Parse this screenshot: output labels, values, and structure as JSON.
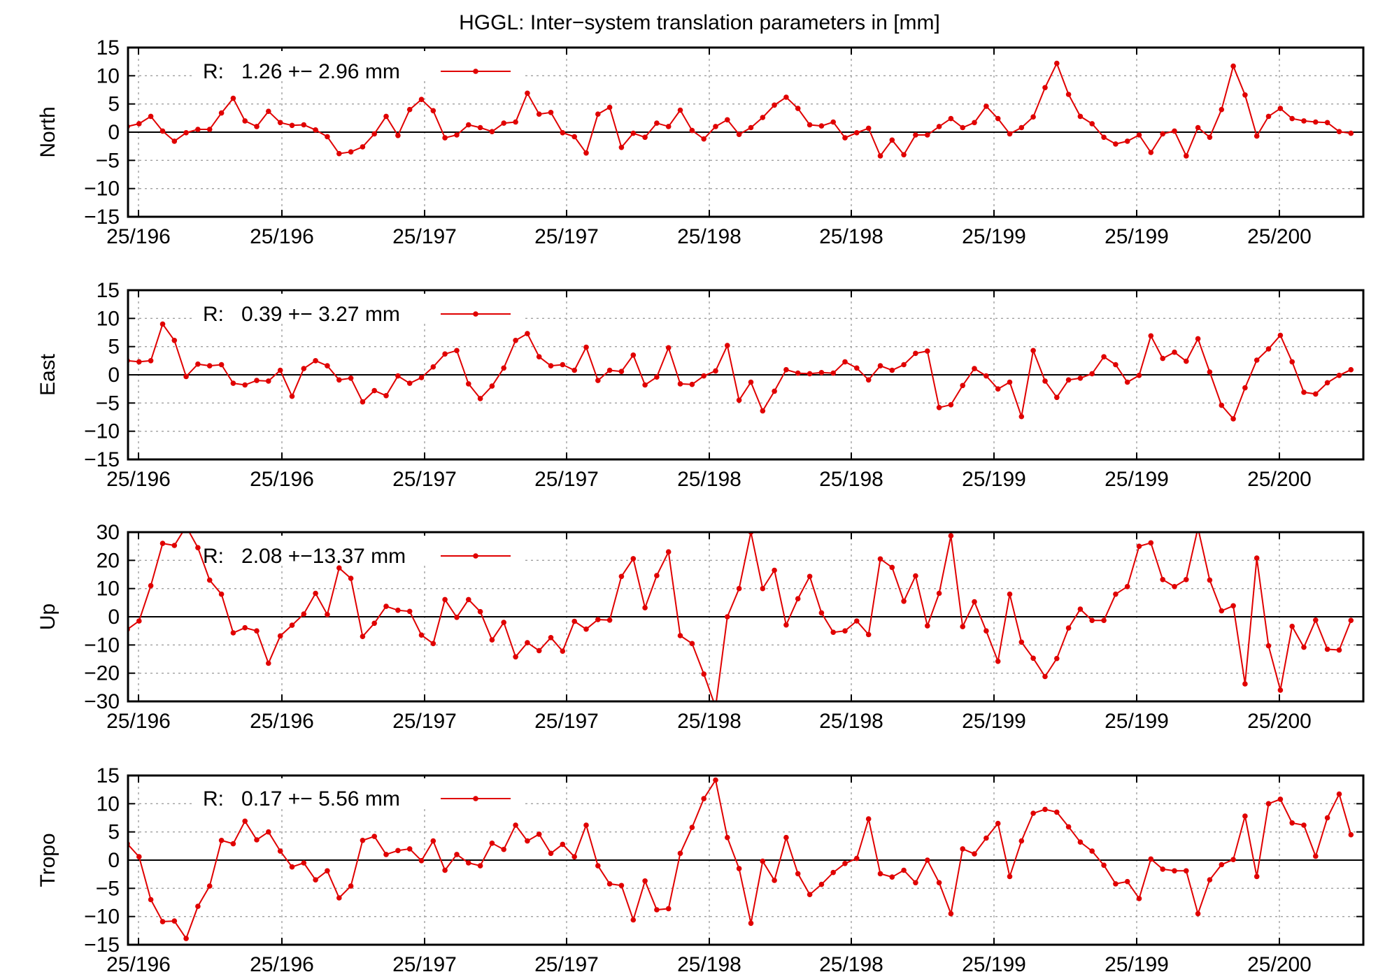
{
  "chart_data": [
    {
      "type": "line",
      "title": "HGGL: Inter−system translation parameters in [mm]",
      "ylabel": "North",
      "ylim": [
        -15,
        15
      ],
      "yticks": [
        15,
        10,
        5,
        0,
        -5,
        -10,
        -15
      ],
      "ytick_labels": [
        "15",
        "10",
        "5",
        "0",
        "−5",
        "−10",
        "−15"
      ],
      "xtick_labels": [
        "25/196",
        "25/196",
        "25/197",
        "25/197",
        "25/198",
        "25/198",
        "25/199",
        "25/199",
        "25/200"
      ],
      "legend_label": "R:   1.26 +− 2.96 mm",
      "series_name": "R",
      "color": "#e00000",
      "values": [
        1.0,
        1.5,
        2.8,
        0.2,
        -1.6,
        -0.1,
        0.5,
        0.5,
        3.4,
        6.0,
        2.0,
        1.0,
        3.7,
        1.7,
        1.2,
        1.3,
        0.4,
        -0.8,
        -3.8,
        -3.5,
        -2.6,
        -0.3,
        2.8,
        -0.6,
        4.0,
        5.8,
        3.8,
        -1.0,
        -0.5,
        1.3,
        0.8,
        0.1,
        1.6,
        1.8,
        6.9,
        3.2,
        3.5,
        -0.1,
        -0.8,
        -3.7,
        3.2,
        4.4,
        -2.7,
        -0.2,
        -0.9,
        1.6,
        1.0,
        3.9,
        0.3,
        -1.2,
        1.0,
        2.2,
        -0.4,
        0.8,
        2.6,
        4.8,
        6.2,
        4.2,
        1.3,
        1.1,
        1.8,
        -1.0,
        -0.1,
        0.7,
        -4.2,
        -1.4,
        -4.0,
        -0.5,
        -0.5,
        1.0,
        2.4,
        0.8,
        1.7,
        4.6,
        2.4,
        -0.3,
        0.8,
        2.7,
        7.9,
        12.2,
        6.7,
        2.8,
        1.5,
        -0.9,
        -2.1,
        -1.6,
        -0.5,
        -3.6,
        -0.3,
        0.2,
        -4.2,
        0.8,
        -0.9,
        4.0,
        11.7,
        6.6,
        -0.7,
        2.8,
        4.2,
        2.4,
        2.0,
        1.8,
        1.7,
        0.1,
        -0.2
      ]
    },
    {
      "type": "line",
      "ylabel": "East",
      "ylim": [
        -15,
        15
      ],
      "yticks": [
        15,
        10,
        5,
        0,
        -5,
        -10,
        -15
      ],
      "ytick_labels": [
        "15",
        "10",
        "5",
        "0",
        "−5",
        "−10",
        "−15"
      ],
      "xtick_labels": [
        "25/196",
        "25/196",
        "25/197",
        "25/197",
        "25/198",
        "25/198",
        "25/199",
        "25/199",
        "25/200"
      ],
      "legend_label": "R:   0.39 +− 3.27 mm",
      "series_name": "R",
      "color": "#e00000",
      "values": [
        2.5,
        2.3,
        2.5,
        9.0,
        6.1,
        -0.3,
        1.9,
        1.6,
        1.8,
        -1.5,
        -1.8,
        -1.0,
        -1.1,
        0.8,
        -3.8,
        1.1,
        2.5,
        1.6,
        -0.9,
        -0.6,
        -4.8,
        -2.8,
        -3.7,
        -0.2,
        -1.5,
        -0.5,
        1.4,
        3.7,
        4.3,
        -1.6,
        -4.2,
        -2.0,
        1.2,
        6.1,
        7.3,
        3.2,
        1.6,
        1.8,
        0.8,
        4.9,
        -1.0,
        0.8,
        0.6,
        3.5,
        -1.8,
        -0.4,
        4.8,
        -1.6,
        -1.7,
        -0.2,
        0.7,
        5.2,
        -4.5,
        -1.3,
        -6.4,
        -2.9,
        0.9,
        0.3,
        0.2,
        0.4,
        0.3,
        2.3,
        1.2,
        -0.9,
        1.6,
        0.8,
        1.8,
        3.8,
        4.2,
        -5.8,
        -5.3,
        -1.9,
        1.1,
        -0.2,
        -2.5,
        -1.3,
        -7.4,
        4.3,
        -1.1,
        -4.0,
        -0.9,
        -0.6,
        0.2,
        3.2,
        1.8,
        -1.3,
        -0.1,
        6.9,
        2.9,
        4.0,
        2.4,
        6.4,
        0.5,
        -5.4,
        -7.8,
        -2.3,
        2.6,
        4.6,
        7.0,
        2.3,
        -3.1,
        -3.4,
        -1.4,
        -0.1,
        0.9
      ]
    },
    {
      "type": "line",
      "ylabel": "Up",
      "ylim": [
        -30,
        30
      ],
      "yticks": [
        30,
        20,
        10,
        0,
        -10,
        -20,
        -30
      ],
      "ytick_labels": [
        "30",
        "20",
        "10",
        "0",
        "−10",
        "−20",
        "−30"
      ],
      "xtick_labels": [
        "25/196",
        "25/196",
        "25/197",
        "25/197",
        "25/198",
        "25/198",
        "25/199",
        "25/199",
        "25/200"
      ],
      "legend_label": "R:   2.08 +−13.37 mm",
      "series_name": "R",
      "color": "#e00000",
      "values": [
        -4.5,
        -1.5,
        11.0,
        26.0,
        25.3,
        32.0,
        24.5,
        13.0,
        8.0,
        -5.7,
        -3.9,
        -5.0,
        -16.5,
        -6.8,
        -3.0,
        1.0,
        8.3,
        0.8,
        17.3,
        13.6,
        -7.0,
        -2.3,
        3.7,
        2.3,
        1.9,
        -6.5,
        -9.5,
        6.1,
        -0.2,
        6.1,
        1.8,
        -8.2,
        -2.0,
        -14.2,
        -9.2,
        -12.0,
        -7.4,
        -12.2,
        -1.6,
        -4.4,
        -1.0,
        -1.2,
        14.3,
        20.6,
        3.2,
        14.6,
        23.0,
        -6.7,
        -9.5,
        -20.3,
        -32.0,
        0.0,
        10.0,
        30.0,
        10.0,
        16.5,
        -2.9,
        6.4,
        14.3,
        1.4,
        -5.5,
        -5.0,
        -1.5,
        -6.3,
        20.5,
        17.5,
        5.5,
        14.5,
        -3.2,
        8.3,
        28.7,
        -3.5,
        5.3,
        -5.0,
        -15.8,
        8.0,
        -9.0,
        -14.7,
        -21.2,
        -14.8,
        -4.0,
        2.7,
        -1.3,
        -1.3,
        8.0,
        10.7,
        25.0,
        26.2,
        13.2,
        10.7,
        13.2,
        31.5,
        13.0,
        2.1,
        3.9,
        -23.8,
        20.8,
        -10.3,
        -26.0,
        -3.4,
        -10.8,
        -1.2,
        -11.5,
        -11.8,
        -1.3
      ]
    },
    {
      "type": "line",
      "ylabel": "Tropo",
      "ylim": [
        -15,
        15
      ],
      "yticks": [
        15,
        10,
        5,
        0,
        -5,
        -10,
        -15
      ],
      "ytick_labels": [
        "15",
        "10",
        "5",
        "0",
        "−5",
        "−10",
        "−15"
      ],
      "xtick_labels": [
        "25/196",
        "25/196",
        "25/197",
        "25/197",
        "25/198",
        "25/198",
        "25/199",
        "25/199",
        "25/200"
      ],
      "legend_label": "R:   0.17 +− 5.56 mm",
      "series_name": "R",
      "color": "#e00000",
      "values": [
        2.9,
        0.6,
        -7.0,
        -10.9,
        -10.8,
        -13.9,
        -8.2,
        -4.6,
        3.5,
        2.9,
        6.9,
        3.6,
        5.0,
        1.6,
        -1.2,
        -0.5,
        -3.5,
        -1.9,
        -6.7,
        -4.6,
        3.5,
        4.2,
        1.0,
        1.7,
        2.0,
        -0.1,
        3.4,
        -1.8,
        1.0,
        -0.5,
        -1.0,
        3.0,
        1.9,
        6.2,
        3.4,
        4.6,
        1.2,
        2.8,
        0.6,
        6.2,
        -1.0,
        -4.2,
        -4.5,
        -10.6,
        -3.7,
        -8.8,
        -8.6,
        1.2,
        5.8,
        10.9,
        14.2,
        4.0,
        -1.5,
        -11.2,
        -0.2,
        -3.6,
        4.0,
        -2.4,
        -6.1,
        -4.3,
        -2.2,
        -0.6,
        0.3,
        7.3,
        -2.4,
        -3.0,
        -1.8,
        -4.0,
        0.0,
        -4.0,
        -9.5,
        2.0,
        1.1,
        3.9,
        6.5,
        -2.9,
        3.4,
        8.3,
        9.0,
        8.5,
        5.9,
        3.2,
        1.6,
        -0.9,
        -4.2,
        -3.8,
        -6.8,
        0.2,
        -1.6,
        -1.9,
        -1.9,
        -9.5,
        -3.5,
        -0.8,
        0.1,
        7.8,
        -2.9,
        10.0,
        10.8,
        6.6,
        6.2,
        0.7,
        7.5,
        11.7,
        4.5
      ]
    }
  ]
}
